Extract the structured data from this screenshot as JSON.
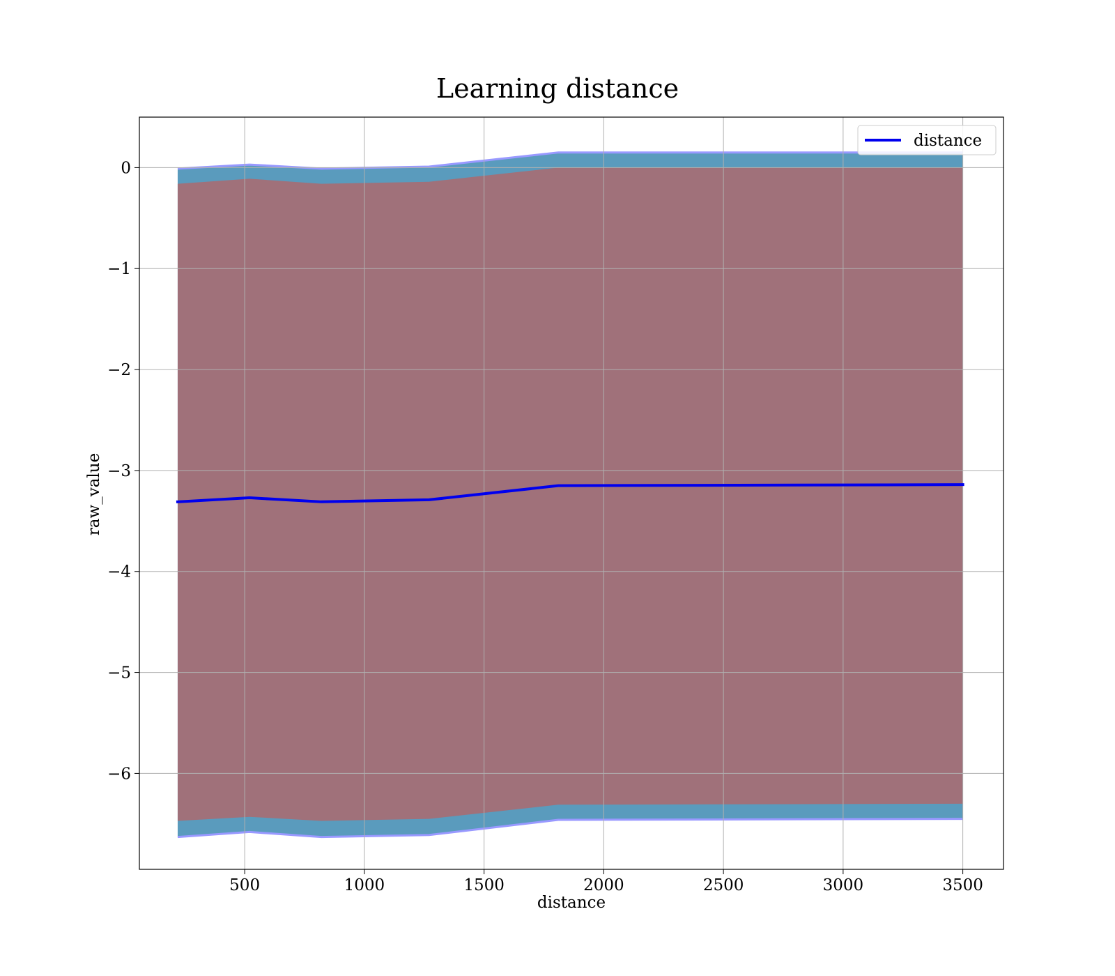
{
  "chart_data": {
    "type": "line",
    "title": "Learning distance",
    "xlabel": "distance",
    "ylabel": "raw_value",
    "xlim": [
      60,
      3670
    ],
    "ylim": [
      -6.95,
      0.5
    ],
    "xticks": [
      500,
      1000,
      1500,
      2000,
      2500,
      3000,
      3500
    ],
    "yticks": [
      0,
      -1,
      -2,
      -3,
      -4,
      -5,
      -6
    ],
    "xtick_labels": [
      "500",
      "1000",
      "1500",
      "2000",
      "2500",
      "3000",
      "3500"
    ],
    "ytick_labels": [
      "0",
      "−1",
      "−2",
      "−3",
      "−4",
      "−5",
      "−6"
    ],
    "grid": true,
    "legend_position": "upper right",
    "x": [
      220,
      520,
      820,
      1270,
      1810,
      3500
    ],
    "series": [
      {
        "name": "distance",
        "color": "#0000ee",
        "values": [
          -3.31,
          -3.27,
          -3.31,
          -3.29,
          -3.15,
          -3.14
        ]
      }
    ],
    "bands": [
      {
        "role": "outer",
        "color": "#5a9bbd",
        "outline_color": "#9999ff",
        "upper": [
          -0.01,
          0.03,
          -0.01,
          0.01,
          0.15,
          0.15
        ],
        "lower": [
          -6.63,
          -6.58,
          -6.63,
          -6.61,
          -6.46,
          -6.45
        ]
      },
      {
        "role": "inner",
        "color": "#a0717a",
        "upper": [
          -0.16,
          -0.11,
          -0.16,
          -0.14,
          0.0,
          0.0
        ],
        "lower": [
          -6.47,
          -6.43,
          -6.47,
          -6.45,
          -6.31,
          -6.3
        ]
      }
    ]
  }
}
